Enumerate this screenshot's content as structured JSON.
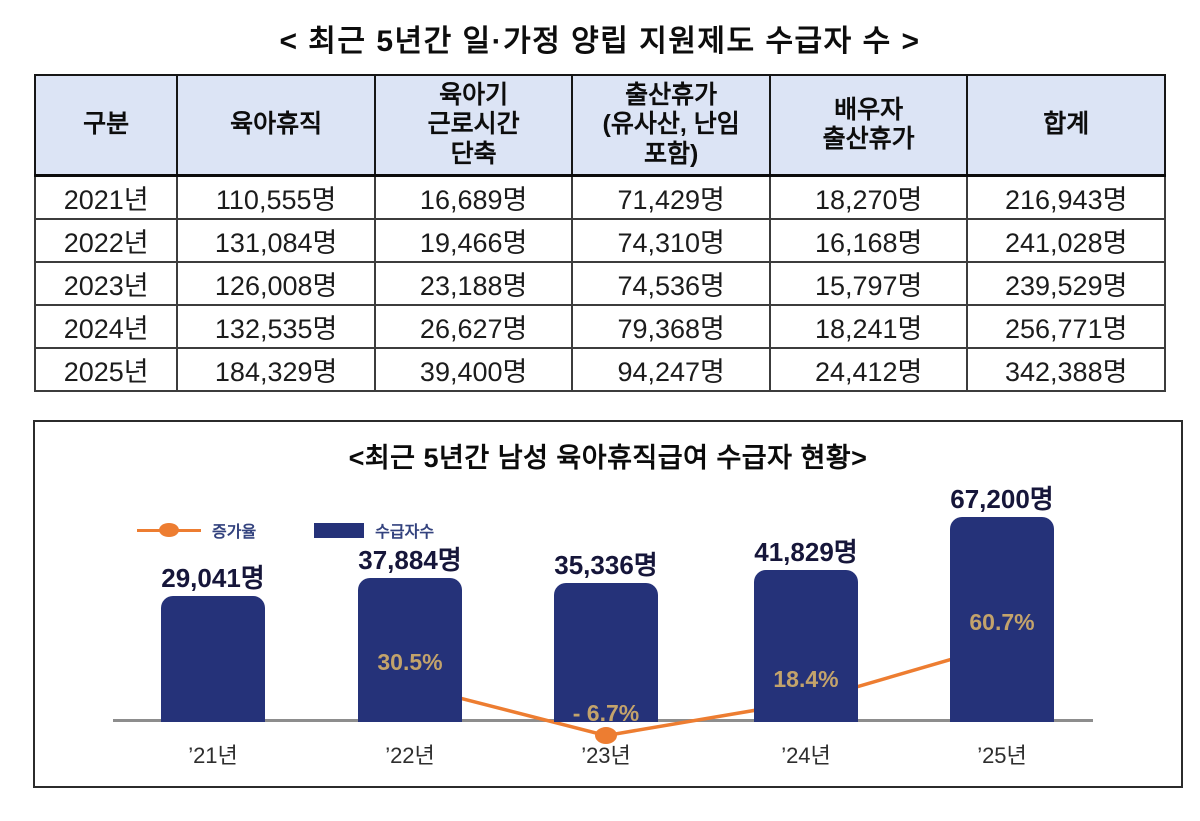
{
  "chart_data": [
    {
      "type": "table",
      "title": "< 최근 5년간 일·가정 양립 지원제도 수급자 수 >",
      "columns": [
        "구분",
        "육아휴직",
        "육아기\n근로시간\n단축",
        "출산휴가\n(유사산, 난임\n포함)",
        "배우자\n출산휴가",
        "합계"
      ],
      "rows": [
        [
          "2021년",
          "110,555명",
          "16,689명",
          "71,429명",
          "18,270명",
          "216,943명"
        ],
        [
          "2022년",
          "131,084명",
          "19,466명",
          "74,310명",
          "16,168명",
          "241,028명"
        ],
        [
          "2023년",
          "126,008명",
          "23,188명",
          "74,536명",
          "15,797명",
          "239,529명"
        ],
        [
          "2024년",
          "132,535명",
          "26,627명",
          "79,368명",
          "18,241명",
          "256,771명"
        ],
        [
          "2025년",
          "184,329명",
          "39,400명",
          "94,247명",
          "24,412명",
          "342,388명"
        ]
      ],
      "header_bg": "#dce4f5",
      "unit": "명"
    },
    {
      "type": "bar",
      "title": "<최근 5년간 남성 육아휴직급여 수급자 현황>",
      "categories": [
        "’21년",
        "’22년",
        "’23년",
        "’24년",
        "’25년"
      ],
      "series": [
        {
          "name": "수급자수",
          "type": "bar",
          "values": [
            29041,
            37884,
            35336,
            41829,
            67200
          ],
          "display": [
            "29,041명",
            "37,884명",
            "35,336명",
            "41,829명",
            "67,200명"
          ],
          "color": "#253279"
        },
        {
          "name": "증가율",
          "type": "line",
          "values": [
            null,
            30.5,
            -6.7,
            18.4,
            60.7
          ],
          "display": [
            null,
            "30.5%",
            "- 6.7%",
            "18.4%",
            "60.7%"
          ],
          "color": "#ed7d31",
          "label_color": "#c3a36b"
        }
      ],
      "legend_position": "top-left",
      "value_labels": true,
      "grid": false,
      "unit": "명"
    }
  ]
}
